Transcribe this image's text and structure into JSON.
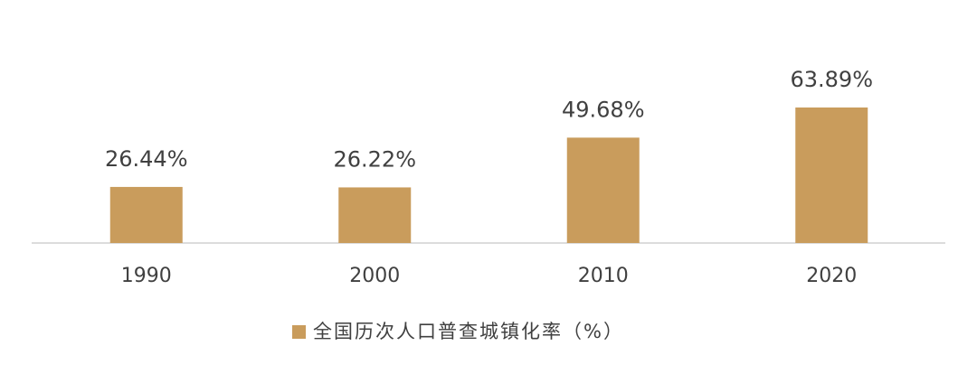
{
  "chart_data": {
    "type": "bar",
    "categories": [
      "1990",
      "2000",
      "2010",
      "2020"
    ],
    "values": [
      26.44,
      26.22,
      49.68,
      63.89
    ],
    "value_labels": [
      "26.44%",
      "26.22%",
      "49.68%",
      "63.89%"
    ],
    "color": "#c99c5c",
    "legend": "全国历次人口普查城镇化率（%）"
  }
}
